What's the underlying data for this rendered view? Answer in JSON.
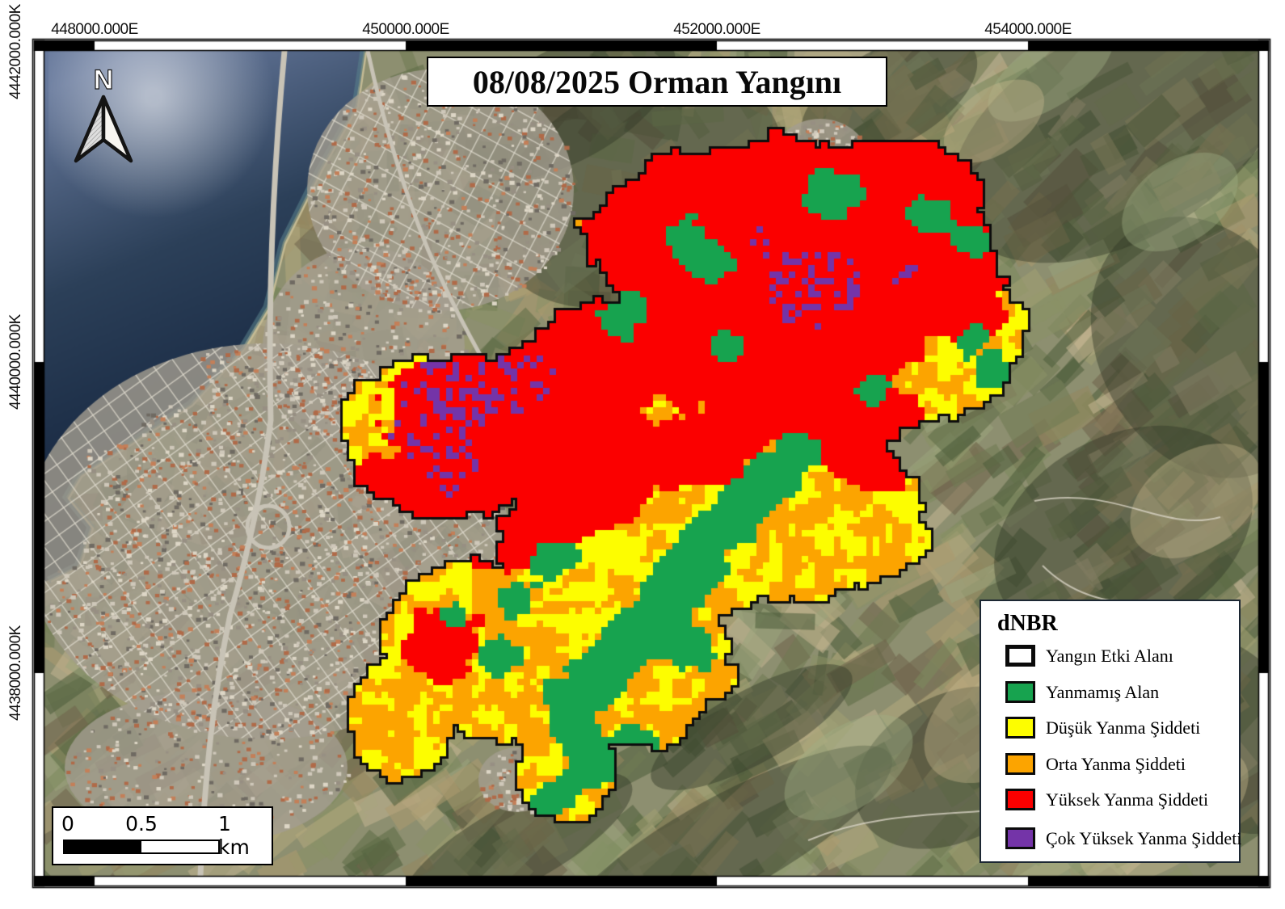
{
  "title": "08/08/2025 Orman Yangını",
  "north_label": "N",
  "grid": {
    "top_labels": [
      "448000.000E",
      "450000.000E",
      "452000.000E",
      "454000.000E"
    ],
    "left_labels": [
      "4442000.000K",
      "4440000.000K",
      "4438000.000K"
    ]
  },
  "legend": {
    "title": "dNBR",
    "items": [
      {
        "label": "Yangın Etki Alanı",
        "color": "#ffffff",
        "outline": "#000000"
      },
      {
        "label": "Yanmamış Alan",
        "color": "#17a34f"
      },
      {
        "label": "Düşük Yanma Şiddeti",
        "color": "#fdfd00"
      },
      {
        "label": "Orta Yanma Şiddeti",
        "color": "#fca400"
      },
      {
        "label": "Yüksek Yanma Şiddeti",
        "color": "#fb0000"
      },
      {
        "label": "Çok Yüksek Yanma Şiddeti",
        "color": "#7434a8"
      }
    ]
  },
  "scalebar": {
    "labels": [
      "0",
      "0.5",
      "1 km"
    ]
  }
}
